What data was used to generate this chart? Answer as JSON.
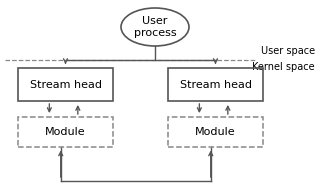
{
  "bg_color": "#ffffff",
  "text_color": "#000000",
  "line_color": "#555555",
  "dash_color": "#888888",
  "user_process_label": "User\nprocess",
  "stream_head_label": "Stream head",
  "module_label": "Module",
  "user_space_label": "User space",
  "kernel_space_label": "Kernel space",
  "font_size_box": 8,
  "font_size_space": 7,
  "figw": 3.2,
  "figh": 1.95,
  "dpi": 100
}
